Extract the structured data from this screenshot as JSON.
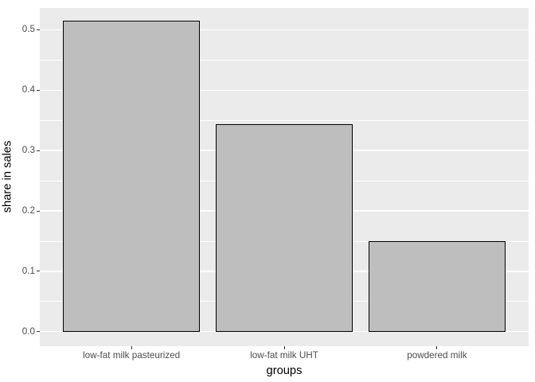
{
  "chart_data": {
    "type": "bar",
    "title": "",
    "categories": [
      "low-fat milk pasteurized",
      "low-fat milk UHT",
      "powdered milk"
    ],
    "values": [
      0.515,
      0.344,
      0.15
    ],
    "xlabel": "groups",
    "ylabel": "share in sales",
    "ylim": [
      -0.024,
      0.536
    ],
    "yticks": [
      0,
      0.1,
      0.2,
      0.3,
      0.4,
      0.5
    ],
    "ytick_labels": [
      "0.0",
      "0.1",
      "0.2",
      "0.3",
      "0.4",
      "0.5"
    ],
    "yticks_minor": [
      0.05,
      0.15,
      0.25,
      0.35,
      0.45
    ],
    "grid": "major-and-minor-horizontal",
    "legend": "none",
    "bar_width_fraction": 0.9,
    "style": {
      "figure_bg": "#FFFFFF",
      "panel_bg": "#EBEBEB",
      "bar_fill": "#BEBEBE",
      "bar_stroke": "#000000",
      "grid_color": "#FFFFFF",
      "tick_mark_color": "#333333",
      "tick_label_color": "#4D4D4D",
      "axis_title_color": "#000000"
    }
  }
}
